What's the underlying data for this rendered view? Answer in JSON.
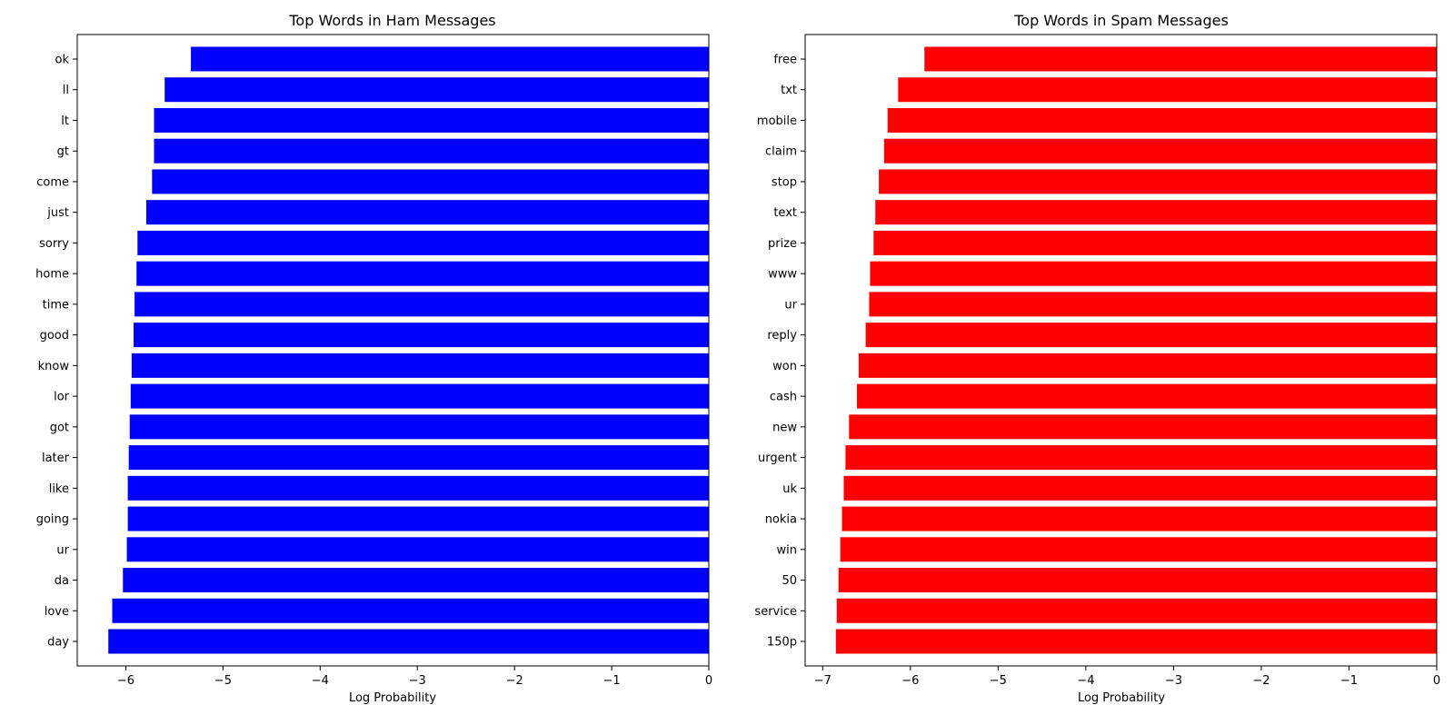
{
  "figure": {
    "bar_color_ham": "#0000ff",
    "bar_color_spam": "#ff0000"
  },
  "chart_data": [
    {
      "type": "bar",
      "orientation": "horizontal",
      "title": "Top Words in Ham Messages",
      "xlabel": "Log Probability",
      "ylabel": "",
      "xlim": [
        -6.5,
        0
      ],
      "xticks": [
        -6,
        -5,
        -4,
        -3,
        -2,
        -1,
        0
      ],
      "xtick_labels": [
        "−6",
        "−5",
        "−4",
        "−3",
        "−2",
        "−1",
        "0"
      ],
      "color": "#0000ff",
      "grid": false,
      "legend": "none",
      "categories": [
        "ok",
        "ll",
        "lt",
        "gt",
        "come",
        "just",
        "sorry",
        "home",
        "time",
        "good",
        "know",
        "lor",
        "got",
        "later",
        "like",
        "going",
        "ur",
        "da",
        "love",
        "day"
      ],
      "values": [
        -5.33,
        -5.6,
        -5.71,
        -5.71,
        -5.73,
        -5.79,
        -5.88,
        -5.89,
        -5.91,
        -5.92,
        -5.94,
        -5.95,
        -5.96,
        -5.97,
        -5.98,
        -5.98,
        -5.99,
        -6.03,
        -6.14,
        -6.18
      ]
    },
    {
      "type": "bar",
      "orientation": "horizontal",
      "title": "Top Words in Spam Messages",
      "xlabel": "Log Probability",
      "ylabel": "",
      "xlim": [
        -7.2,
        0
      ],
      "xticks": [
        -7,
        -6,
        -5,
        -4,
        -3,
        -2,
        -1,
        0
      ],
      "xtick_labels": [
        "−7",
        "−6",
        "−5",
        "−4",
        "−3",
        "−2",
        "−1",
        "0"
      ],
      "color": "#ff0000",
      "grid": false,
      "legend": "none",
      "categories": [
        "free",
        "txt",
        "mobile",
        "claim",
        "stop",
        "text",
        "prize",
        "www",
        "ur",
        "reply",
        "won",
        "cash",
        "new",
        "urgent",
        "uk",
        "nokia",
        "win",
        "50",
        "service",
        "150p"
      ],
      "values": [
        -5.84,
        -6.14,
        -6.26,
        -6.3,
        -6.36,
        -6.4,
        -6.42,
        -6.46,
        -6.47,
        -6.51,
        -6.59,
        -6.61,
        -6.7,
        -6.74,
        -6.76,
        -6.78,
        -6.8,
        -6.82,
        -6.84,
        -6.85
      ]
    }
  ]
}
